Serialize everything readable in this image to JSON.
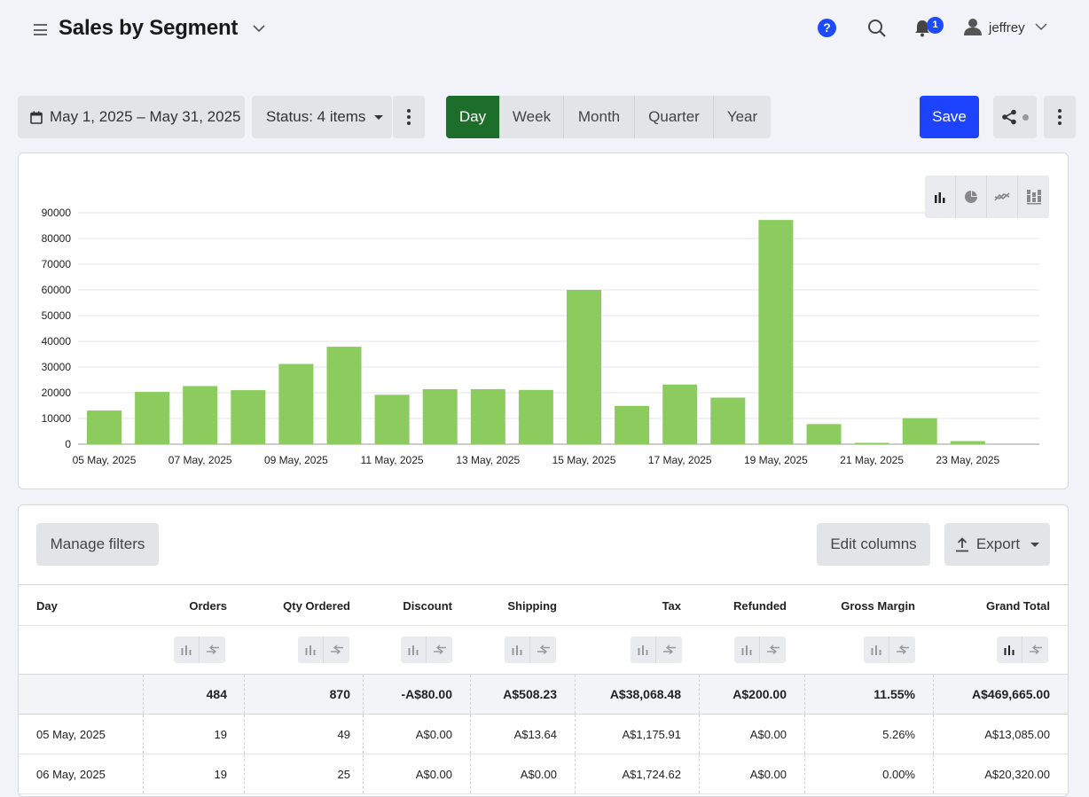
{
  "header": {
    "title": "Sales by Segment",
    "help_label": "?",
    "notification_count": "1",
    "user": "jeffrey"
  },
  "toolbar": {
    "date_range": "May 1, 2025 – May 31, 2025",
    "status": "Status: 4 items",
    "periods": [
      "Day",
      "Week",
      "Month",
      "Quarter",
      "Year"
    ],
    "active_period": "Day",
    "save_label": "Save"
  },
  "chart_data": {
    "type": "bar",
    "categories": [
      "05 May, 2025",
      "06 May, 2025",
      "07 May, 2025",
      "08 May, 2025",
      "09 May, 2025",
      "10 May, 2025",
      "11 May, 2025",
      "12 May, 2025",
      "13 May, 2025",
      "14 May, 2025",
      "15 May, 2025",
      "16 May, 2025",
      "17 May, 2025",
      "18 May, 2025",
      "19 May, 2025",
      "20 May, 2025",
      "21 May, 2025",
      "22 May, 2025",
      "23 May, 2025",
      "24 May, 2025"
    ],
    "x_tick_labels": [
      "05 May, 2025",
      "07 May, 2025",
      "09 May, 2025",
      "11 May, 2025",
      "13 May, 2025",
      "15 May, 2025",
      "17 May, 2025",
      "19 May, 2025",
      "21 May, 2025",
      "23 May, 2025"
    ],
    "values": [
      13085,
      20320,
      22600,
      21000,
      31200,
      37900,
      19200,
      21400,
      21400,
      21100,
      60000,
      14900,
      23200,
      18100,
      87200,
      7800,
      500,
      10100,
      1200,
      0
    ],
    "ylim": [
      0,
      90000
    ],
    "y_ticks": [
      "0",
      "10000",
      "20000",
      "30000",
      "40000",
      "50000",
      "60000",
      "70000",
      "80000",
      "90000"
    ],
    "grid": true,
    "color": "#8ccc5e"
  },
  "chart_type_icons": [
    "bar-chart-icon",
    "pie-chart-icon",
    "line-chart-icon",
    "stacked-chart-icon"
  ],
  "table": {
    "manage_filters": "Manage filters",
    "edit_columns": "Edit columns",
    "export": "Export",
    "columns": [
      "Day",
      "Orders",
      "Qty Ordered",
      "Discount",
      "Shipping",
      "Tax",
      "Refunded",
      "Gross Margin",
      "Grand Total"
    ],
    "totals": [
      "",
      "484",
      "870",
      "-A$80.00",
      "A$508.23",
      "A$38,068.48",
      "A$200.00",
      "11.55%",
      "A$469,665.00"
    ],
    "rows": [
      [
        "05 May, 2025",
        "19",
        "49",
        "A$0.00",
        "A$13.64",
        "A$1,175.91",
        "A$0.00",
        "5.26%",
        "A$13,085.00"
      ],
      [
        "06 May, 2025",
        "19",
        "25",
        "A$0.00",
        "A$0.00",
        "A$1,724.62",
        "A$0.00",
        "0.00%",
        "A$20,320.00"
      ]
    ]
  }
}
